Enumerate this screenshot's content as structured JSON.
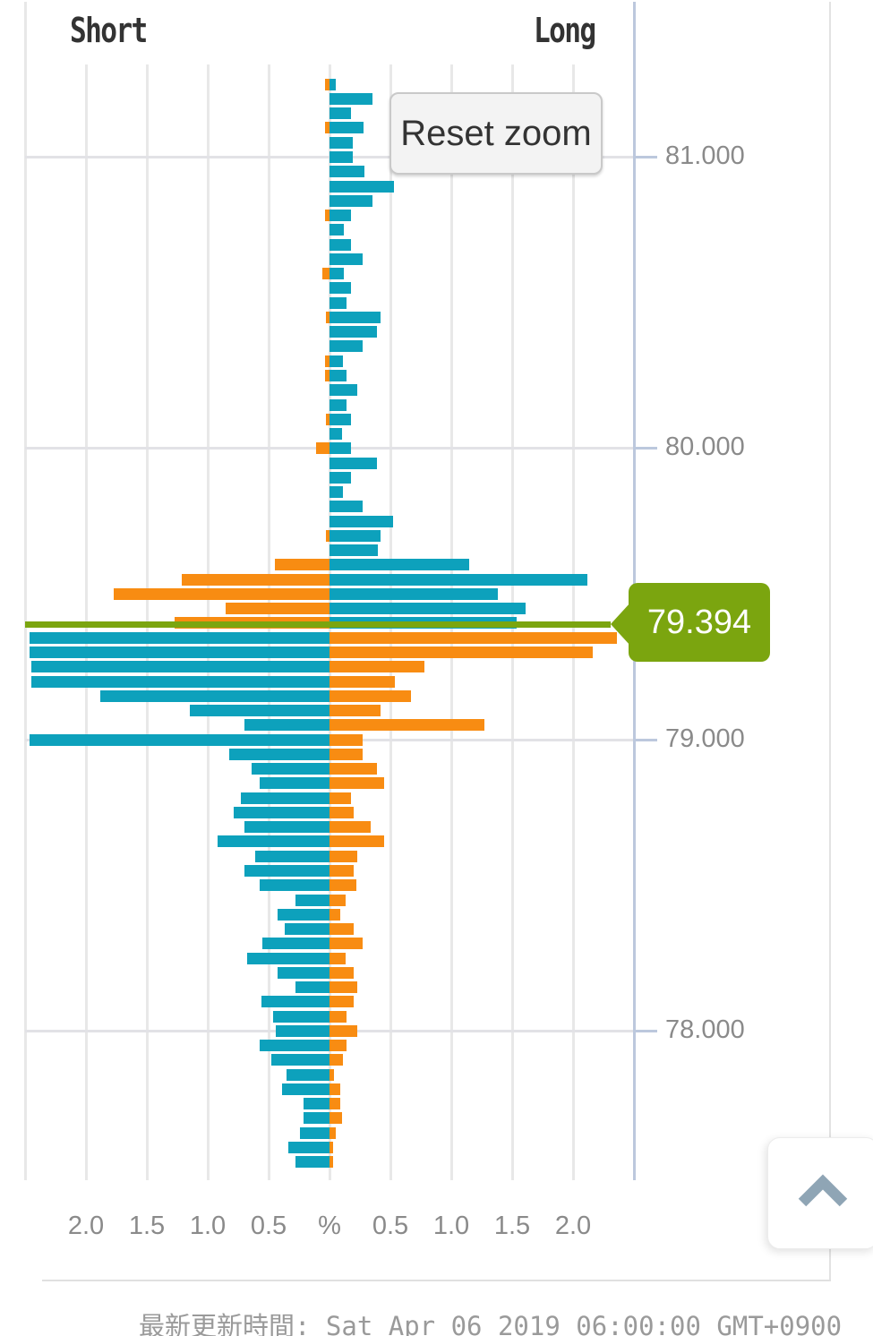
{
  "header": {
    "short_label": "Short",
    "long_label": "Long"
  },
  "controls": {
    "reset_zoom_label": "Reset zoom"
  },
  "price_flag": {
    "value": "79.394"
  },
  "footer": {
    "updated_text": "最新更新時間: Sat Apr 06 2019 06:00:00 GMT+0900"
  },
  "icons": {
    "scroll_top": "chevron-up-icon"
  },
  "colors": {
    "long_bars_teal": "#0da1bc",
    "short_bars_orange": "#f88c12",
    "price_line_green": "#7ba50f",
    "grid": "#e8e8e8",
    "axis_blue": "#bcc8dd",
    "label_gray": "#8a8a8a"
  },
  "chart_data": {
    "type": "bar",
    "orientation": "horizontal-diverging",
    "title": "Open orders ratio by price (Short left / Long right)",
    "x_axis": {
      "unit": "%",
      "tick_labels": [
        "2.0",
        "1.5",
        "1.0",
        "0.5",
        "%",
        "0.5",
        "1.0",
        "1.5",
        "2.0"
      ],
      "tick_values": [
        -2.0,
        -1.5,
        -1.0,
        -0.5,
        0,
        0.5,
        1.0,
        1.5,
        2.0
      ],
      "xlim": [
        -2.5,
        2.5
      ],
      "grid": true
    },
    "y_axis": {
      "tick_labels": [
        "81.000",
        "80.000",
        "79.000",
        "78.000"
      ],
      "tick_values": [
        81.0,
        80.0,
        79.0,
        78.0
      ],
      "ylim_top": 81.32,
      "ylim_bottom": 77.51,
      "price_step_per_row": 0.05
    },
    "current_price": 79.394,
    "legend": {
      "above_price_colors": {
        "left": "#f88c12",
        "right": "#0da1bc"
      },
      "below_price_colors": {
        "left": "#0da1bc",
        "right": "#f88c12"
      }
    },
    "prices": [
      81.25,
      81.2,
      81.15,
      81.1,
      81.05,
      81.0,
      80.95,
      80.9,
      80.85,
      80.8,
      80.75,
      80.7,
      80.65,
      80.6,
      80.55,
      80.5,
      80.45,
      80.4,
      80.35,
      80.3,
      80.25,
      80.2,
      80.15,
      80.1,
      80.05,
      80.0,
      79.95,
      79.9,
      79.85,
      79.8,
      79.75,
      79.7,
      79.65,
      79.6,
      79.55,
      79.5,
      79.45,
      79.4,
      79.35,
      79.3,
      79.25,
      79.2,
      79.15,
      79.1,
      79.05,
      79.0,
      78.95,
      78.9,
      78.85,
      78.8,
      78.75,
      78.7,
      78.65,
      78.6,
      78.55,
      78.5,
      78.45,
      78.4,
      78.35,
      78.3,
      78.25,
      78.2,
      78.15,
      78.1,
      78.05,
      78.0,
      77.95,
      77.9,
      77.85,
      77.8,
      77.75,
      77.7,
      77.65,
      77.6,
      77.55
    ],
    "short_pct": [
      0.04,
      0,
      0,
      0.04,
      0,
      0,
      0,
      0,
      0,
      0.04,
      0,
      0,
      0,
      0.06,
      0,
      0,
      0.03,
      0,
      0,
      0.04,
      0.04,
      0,
      0,
      0.03,
      0,
      0.11,
      0,
      0,
      0,
      0,
      0,
      0.03,
      0,
      0.45,
      1.21,
      1.77,
      0.85,
      1.27,
      2.46,
      2.46,
      2.45,
      2.45,
      1.88,
      1.15,
      0.7,
      2.46,
      0.82,
      0.64,
      0.57,
      0.73,
      0.79,
      0.7,
      0.92,
      0.61,
      0.7,
      0.57,
      0.28,
      0.43,
      0.37,
      0.55,
      0.68,
      0.43,
      0.28,
      0.56,
      0.46,
      0.44,
      0.57,
      0.48,
      0.35,
      0.39,
      0.21,
      0.21,
      0.24,
      0.34,
      0.28
    ],
    "long_pct": [
      0.05,
      0.35,
      0.18,
      0.28,
      0.19,
      0.19,
      0.29,
      0.53,
      0.35,
      0.18,
      0.12,
      0.18,
      0.27,
      0.12,
      0.18,
      0.14,
      0.42,
      0.39,
      0.27,
      0.11,
      0.14,
      0.23,
      0.14,
      0.18,
      0.1,
      0.18,
      0.39,
      0.18,
      0.11,
      0.27,
      0.52,
      0.42,
      0.4,
      1.15,
      2.12,
      1.38,
      1.61,
      1.54,
      2.36,
      2.16,
      0.78,
      0.54,
      0.67,
      0.42,
      1.27,
      0.27,
      0.27,
      0.39,
      0.45,
      0.18,
      0.2,
      0.34,
      0.45,
      0.23,
      0.2,
      0.22,
      0.13,
      0.09,
      0.2,
      0.27,
      0.13,
      0.2,
      0.23,
      0.2,
      0.14,
      0.23,
      0.14,
      0.11,
      0.04,
      0.09,
      0.09,
      0.1,
      0.05,
      0.03,
      0.03
    ]
  }
}
